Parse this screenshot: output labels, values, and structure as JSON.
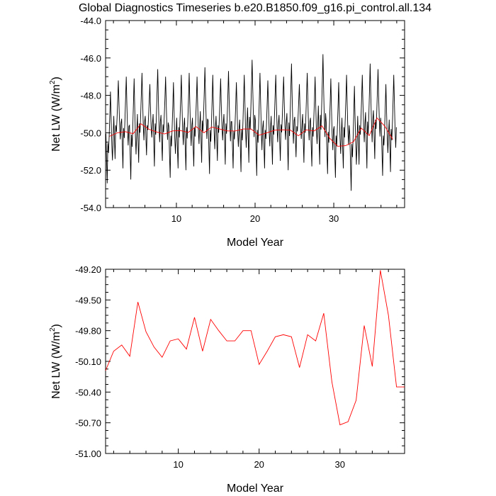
{
  "title": "Global Diagnostics Timeseries b.e20.B1850.f09_g16.pi_control.all.134",
  "chart_data": [
    {
      "type": "line",
      "xlabel": "Model Year",
      "ylabel_main": "Net LW (W/m",
      "ylabel_sup": "2",
      "ylabel_end": ")",
      "xlim": [
        1,
        39
      ],
      "ylim": [
        -54.0,
        -44.0
      ],
      "xticks": [
        10,
        20,
        30
      ],
      "yticks": [
        "-54.0",
        "-52.0",
        "-50.0",
        "-48.0",
        "-46.0",
        "-44.0"
      ],
      "series": [
        {
          "role": "monthly",
          "color": "#000000",
          "peaks": [
            -47.8,
            -47.2,
            -47.0,
            -47.1,
            -46.8,
            -47.4,
            -46.6,
            -47.0,
            -47.3,
            -46.9,
            -46.8,
            -47.0,
            -46.5,
            -46.9,
            -47.1,
            -46.7,
            -47.3,
            -46.9,
            -46.1,
            -46.8,
            -47.2,
            -46.9,
            -47.0,
            -46.3,
            -47.4,
            -46.8,
            -47.0,
            -45.8,
            -47.1,
            -47.3,
            -46.9,
            -47.5,
            -46.9,
            -46.3,
            -46.6,
            -47.4,
            -46.9
          ],
          "troughs": [
            -52.7,
            -51.4,
            -51.9,
            -52.5,
            -51.6,
            -51.2,
            -51.8,
            -51.5,
            -52.4,
            -51.9,
            -52.0,
            -51.8,
            -51.6,
            -52.2,
            -51.5,
            -51.7,
            -51.9,
            -52.1,
            -51.6,
            -52.3,
            -51.9,
            -51.7,
            -51.5,
            -52.0,
            -51.3,
            -51.6,
            -51.8,
            -51.7,
            -52.2,
            -52.4,
            -51.9,
            -53.1,
            -51.7,
            -51.9,
            -51.4,
            -52.3,
            -52.1
          ]
        },
        {
          "role": "annual",
          "color": "#ff0000",
          "x": [
            1.5,
            2.5,
            3.5,
            4.5,
            5.5,
            6.5,
            7.5,
            8.5,
            9.5,
            10.5,
            11.5,
            12.5,
            13.5,
            14.5,
            15.5,
            16.5,
            17.5,
            18.5,
            19.5,
            20.5,
            21.5,
            22.5,
            23.5,
            24.5,
            25.5,
            26.5,
            27.5,
            28.5,
            29.5,
            30.5,
            31.5,
            32.5,
            33.5,
            34.5,
            35.5,
            36.5,
            37.5
          ],
          "y": [
            -50.19,
            -50.0,
            -49.94,
            -50.05,
            -49.52,
            -49.81,
            -49.96,
            -50.06,
            -49.9,
            -49.88,
            -49.98,
            -49.67,
            -50.0,
            -49.69,
            -49.8,
            -49.9,
            -49.9,
            -49.8,
            -49.8,
            -50.13,
            -50.0,
            -49.86,
            -49.84,
            -49.86,
            -50.16,
            -49.84,
            -49.9,
            -49.63,
            -50.3,
            -50.72,
            -50.69,
            -50.48,
            -49.75,
            -50.15,
            -49.21,
            -49.65,
            -50.35
          ]
        }
      ]
    },
    {
      "type": "line",
      "xlabel": "Model Year",
      "ylabel_main": "Net LW (W/m",
      "ylabel_sup": "2",
      "ylabel_end": ")",
      "xlim": [
        1,
        38
      ],
      "ylim": [
        -51.0,
        -49.2
      ],
      "xticks": [
        10,
        20,
        30
      ],
      "yticks": [
        "-51.00",
        "-50.70",
        "-50.40",
        "-50.10",
        "-49.80",
        "-49.50",
        "-49.20"
      ],
      "series": [
        {
          "role": "annual",
          "color": "#ff0000",
          "x": [
            1.0,
            2.0,
            3.0,
            4.0,
            5.0,
            6.0,
            7.0,
            8.0,
            9.0,
            10.0,
            11.0,
            12.0,
            13.0,
            14.0,
            15.0,
            16.0,
            17.0,
            18.0,
            19.0,
            20.0,
            21.0,
            22.0,
            23.0,
            24.0,
            25.0,
            26.0,
            27.0,
            28.0,
            29.0,
            30.0,
            31.0,
            32.0,
            33.0,
            34.0,
            35.0,
            36.0,
            37.0,
            38.0
          ],
          "y": [
            -50.19,
            -50.0,
            -49.94,
            -50.05,
            -49.52,
            -49.81,
            -49.96,
            -50.06,
            -49.9,
            -49.88,
            -49.98,
            -49.67,
            -50.0,
            -49.69,
            -49.8,
            -49.9,
            -49.9,
            -49.8,
            -49.8,
            -50.13,
            -50.0,
            -49.86,
            -49.84,
            -49.86,
            -50.16,
            -49.84,
            -49.9,
            -49.63,
            -50.3,
            -50.72,
            -50.69,
            -50.48,
            -49.75,
            -50.15,
            -49.21,
            -49.65,
            -50.35,
            -50.35
          ]
        }
      ]
    }
  ]
}
